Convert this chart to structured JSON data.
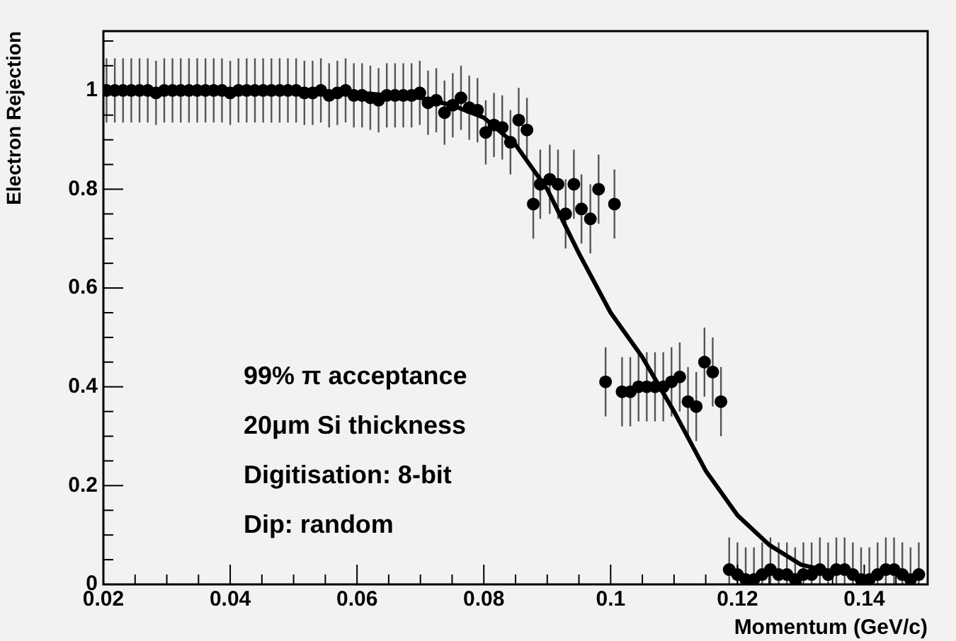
{
  "chart_data": {
    "type": "scatter",
    "xlabel": "Momentum (GeV/c)",
    "ylabel": "Electron Rejection",
    "annotations": [
      "99% π acceptance",
      "20μm Si thickness",
      "Digitisation: 8-bit",
      "Dip: random"
    ],
    "xlim": [
      0.02,
      0.15
    ],
    "ylim": [
      0,
      1.12
    ],
    "xticks": [
      0.02,
      {
        "value": 0.025,
        "label": null
      },
      {
        "value": 0.03,
        "label": null
      },
      {
        "value": 0.035,
        "label": null
      },
      0.04,
      {
        "value": 0.045,
        "label": null
      },
      {
        "value": 0.05,
        "label": null
      },
      {
        "value": 0.055,
        "label": null
      },
      0.06,
      {
        "value": 0.065,
        "label": null
      },
      {
        "value": 0.07,
        "label": null
      },
      {
        "value": 0.075,
        "label": null
      },
      0.08,
      {
        "value": 0.085,
        "label": null
      },
      {
        "value": 0.09,
        "label": null
      },
      {
        "value": 0.095,
        "label": null
      },
      0.1,
      {
        "value": 0.105,
        "label": null
      },
      {
        "value": 0.11,
        "label": null
      },
      {
        "value": 0.115,
        "label": null
      },
      0.12,
      {
        "value": 0.125,
        "label": null
      },
      {
        "value": 0.13,
        "label": null
      },
      {
        "value": 0.135,
        "label": null
      },
      0.14,
      {
        "value": 0.145,
        "label": null
      }
    ],
    "yticks": [
      0,
      {
        "value": 0.05,
        "label": null
      },
      {
        "value": 0.1,
        "label": null
      },
      {
        "value": 0.15,
        "label": null
      },
      0.2,
      {
        "value": 0.25,
        "label": null
      },
      {
        "value": 0.3,
        "label": null
      },
      {
        "value": 0.35,
        "label": null
      },
      0.4,
      {
        "value": 0.45,
        "label": null
      },
      {
        "value": 0.5,
        "label": null
      },
      {
        "value": 0.55,
        "label": null
      },
      0.6,
      {
        "value": 0.65,
        "label": null
      },
      {
        "value": 0.7,
        "label": null
      },
      {
        "value": 0.75,
        "label": null
      },
      0.8,
      {
        "value": 0.85,
        "label": null
      },
      {
        "value": 0.9,
        "label": null
      },
      {
        "value": 0.95,
        "label": null
      },
      1,
      {
        "value": 1.05,
        "label": null
      },
      {
        "value": 1.1,
        "label": null
      }
    ],
    "legend": false,
    "marker": "circle",
    "series": [
      {
        "type": "scatter",
        "color": "#000000",
        "x": [
          0.0205,
          0.0218,
          0.0231,
          0.0244,
          0.0257,
          0.027,
          0.0283,
          0.0296,
          0.0309,
          0.0322,
          0.0335,
          0.0348,
          0.0361,
          0.0374,
          0.0387,
          0.04,
          0.0413,
          0.0426,
          0.0439,
          0.0452,
          0.0465,
          0.0478,
          0.0491,
          0.0504,
          0.0517,
          0.053,
          0.0543,
          0.0556,
          0.0569,
          0.0582,
          0.0595,
          0.0608,
          0.0621,
          0.0634,
          0.0647,
          0.066,
          0.0673,
          0.0686,
          0.0699,
          0.0712,
          0.0725,
          0.0738,
          0.0751,
          0.0764,
          0.0777,
          0.079,
          0.0803,
          0.0816,
          0.0829,
          0.0842,
          0.0855,
          0.0868,
          0.0878,
          0.0889,
          0.0904,
          0.0917,
          0.0929,
          0.0942,
          0.0954,
          0.0968,
          0.0981,
          0.1006,
          0.0992,
          0.1018,
          0.1031,
          0.1044,
          0.1057,
          0.107,
          0.1083,
          0.1096,
          0.1109,
          0.1122,
          0.1135,
          0.1148,
          0.1161,
          0.1174,
          0.1187,
          0.12,
          0.1213,
          0.1226,
          0.1239,
          0.1252,
          0.1265,
          0.1278,
          0.1291,
          0.1304,
          0.1317,
          0.133,
          0.1343,
          0.1356,
          0.1369,
          0.1382,
          0.1395,
          0.1408,
          0.1421,
          0.1434,
          0.1447,
          0.146,
          0.1473,
          0.1486
        ],
        "values": [
          1.0,
          1.0,
          1.0,
          1.0,
          1.0,
          1.0,
          0.995,
          1.0,
          1.0,
          1.0,
          1.0,
          1.0,
          1.0,
          1.0,
          1.0,
          0.995,
          1.0,
          1.0,
          1.0,
          1.0,
          1.0,
          1.0,
          1.0,
          1.0,
          0.995,
          0.995,
          1.0,
          0.99,
          0.995,
          1.0,
          0.99,
          0.99,
          0.985,
          0.98,
          0.99,
          0.99,
          0.99,
          0.99,
          0.995,
          0.975,
          0.98,
          0.955,
          0.97,
          0.985,
          0.965,
          0.96,
          0.915,
          0.93,
          0.925,
          0.895,
          0.94,
          0.92,
          0.77,
          0.81,
          0.82,
          0.81,
          0.75,
          0.81,
          0.76,
          0.74,
          0.8,
          0.77,
          0.41,
          0.39,
          0.39,
          0.4,
          0.4,
          0.4,
          0.4,
          0.41,
          0.42,
          0.37,
          0.36,
          0.45,
          0.43,
          0.37,
          0.03,
          0.02,
          0.01,
          0.01,
          0.02,
          0.03,
          0.02,
          0.02,
          0.01,
          0.02,
          0.02,
          0.03,
          0.02,
          0.03,
          0.03,
          0.02,
          0.01,
          0.01,
          0.02,
          0.03,
          0.03,
          0.02,
          0.01,
          0.02
        ],
        "errors": [
          0.065,
          0.065,
          0.065,
          0.065,
          0.065,
          0.065,
          0.065,
          0.065,
          0.065,
          0.065,
          0.065,
          0.065,
          0.065,
          0.065,
          0.065,
          0.065,
          0.065,
          0.065,
          0.065,
          0.065,
          0.065,
          0.065,
          0.065,
          0.065,
          0.065,
          0.065,
          0.065,
          0.065,
          0.065,
          0.065,
          0.065,
          0.065,
          0.065,
          0.065,
          0.065,
          0.065,
          0.065,
          0.065,
          0.065,
          0.065,
          0.065,
          0.065,
          0.065,
          0.065,
          0.065,
          0.065,
          0.065,
          0.065,
          0.065,
          0.065,
          0.065,
          0.065,
          0.07,
          0.07,
          0.07,
          0.07,
          0.07,
          0.07,
          0.07,
          0.07,
          0.07,
          0.07,
          0.07,
          0.07,
          0.07,
          0.07,
          0.07,
          0.07,
          0.07,
          0.07,
          0.07,
          0.07,
          0.07,
          0.07,
          0.07,
          0.07,
          [
            0,
            0.095
          ],
          [
            0,
            0.085
          ],
          [
            0,
            0.075
          ],
          [
            0,
            0.075
          ],
          [
            0,
            0.085
          ],
          [
            0,
            0.095
          ],
          [
            0,
            0.085
          ],
          [
            0,
            0.085
          ],
          [
            0,
            0.075
          ],
          [
            0,
            0.085
          ],
          [
            0,
            0.085
          ],
          [
            0,
            0.095
          ],
          [
            0,
            0.085
          ],
          [
            0,
            0.095
          ],
          [
            0,
            0.095
          ],
          [
            0,
            0.085
          ],
          [
            0,
            0.075
          ],
          [
            0,
            0.075
          ],
          [
            0,
            0.085
          ],
          [
            0,
            0.095
          ],
          [
            0,
            0.095
          ],
          [
            0,
            0.085
          ],
          [
            0,
            0.075
          ],
          [
            0,
            0.085
          ]
        ]
      },
      {
        "type": "line",
        "color": "#000000",
        "marker": "none",
        "x": [
          0.02,
          0.06,
          0.07,
          0.075,
          0.08,
          0.085,
          0.09,
          0.095,
          0.1,
          0.105,
          0.11,
          0.115,
          0.12,
          0.125,
          0.13,
          0.135
        ],
        "values": [
          1.0,
          0.995,
          0.985,
          0.97,
          0.945,
          0.89,
          0.8,
          0.67,
          0.55,
          0.46,
          0.35,
          0.23,
          0.14,
          0.08,
          0.04,
          0.025
        ]
      }
    ]
  }
}
